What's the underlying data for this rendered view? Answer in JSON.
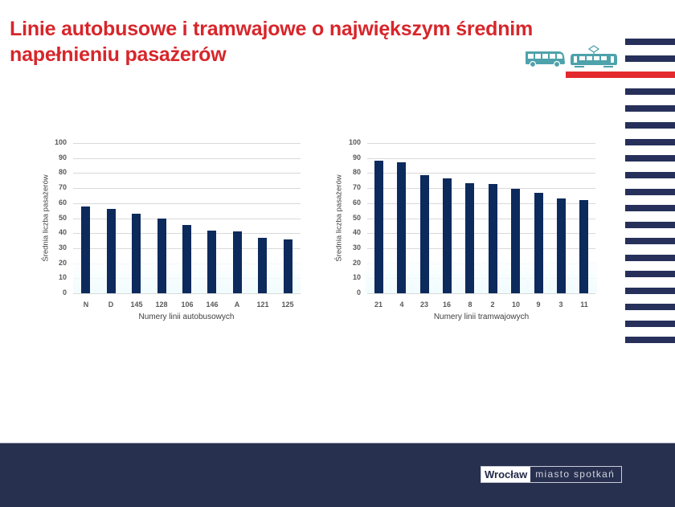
{
  "slide": {
    "title_line1": "Linie autobusowe i tramwajowe o największym średnim",
    "title_line2": "napełnieniu pasażerów",
    "icons": [
      "bus-icon",
      "tram-icon"
    ],
    "colors": {
      "title": "#d7262b",
      "bars": "#0d2a5c",
      "stripes": "#26305a",
      "accent_red": "#e3292d",
      "footer": "#283050"
    }
  },
  "footer": {
    "logo_city": "Wrocław",
    "logo_slogan": "miasto spotkań"
  },
  "chart_data": [
    {
      "type": "bar",
      "title": "",
      "xlabel": "Numery linii autobusowych",
      "ylabel": "Średnia liczba pasażerów",
      "categories": [
        "N",
        "D",
        "145",
        "128",
        "106",
        "146",
        "A",
        "121",
        "125"
      ],
      "values": [
        57.5,
        56,
        53,
        49.5,
        45.5,
        41.5,
        41,
        37,
        36
      ],
      "ylim": [
        0,
        100
      ],
      "yticks": [
        "100",
        "90",
        "80",
        "70",
        "60",
        "50",
        "40",
        "30",
        "20",
        "10",
        "0"
      ],
      "grid": true,
      "legend": null
    },
    {
      "type": "bar",
      "title": "",
      "xlabel": "Numery linii tramwajowych",
      "ylabel": "Średnia liczba pasażerów",
      "categories": [
        "21",
        "4",
        "23",
        "16",
        "8",
        "2",
        "10",
        "9",
        "3",
        "11"
      ],
      "values": [
        88.5,
        87,
        78.5,
        76.5,
        73.5,
        72.5,
        69.5,
        67,
        63,
        62
      ],
      "ylim": [
        0,
        100
      ],
      "yticks": [
        "100",
        "90",
        "80",
        "70",
        "60",
        "50",
        "40",
        "30",
        "20",
        "10",
        "0"
      ],
      "grid": true,
      "legend": null
    }
  ]
}
